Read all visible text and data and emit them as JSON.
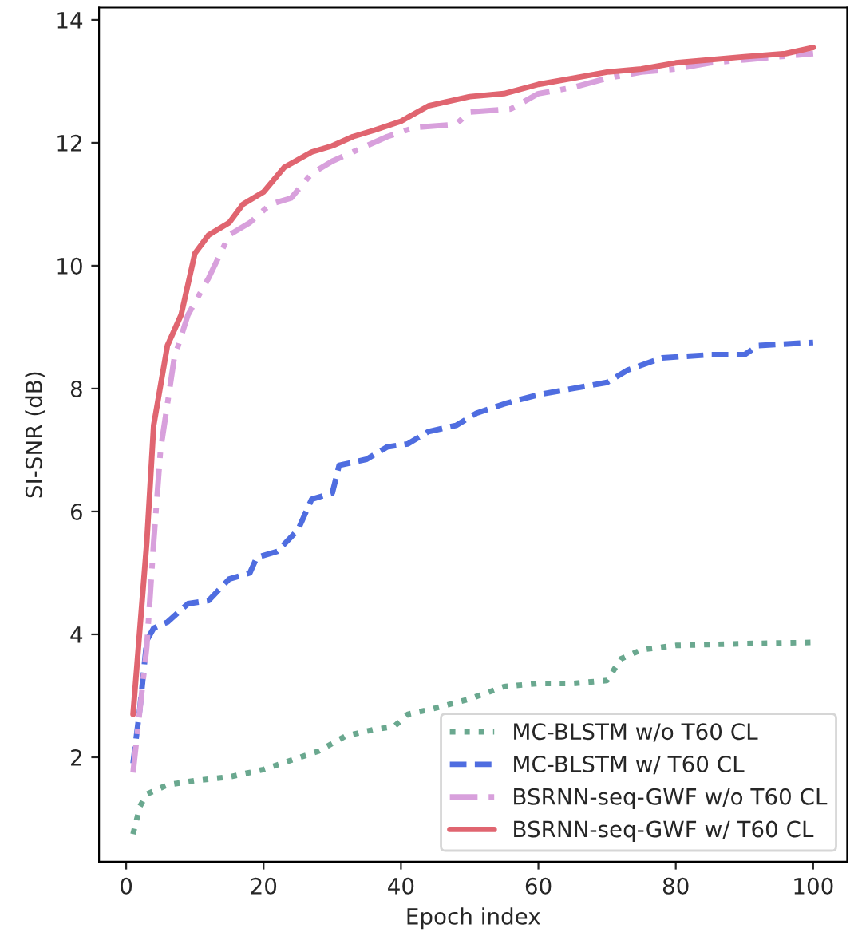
{
  "chart_data": {
    "type": "line",
    "xlabel": "Epoch index",
    "ylabel": "SI-SNR (dB)",
    "xlim": [
      -3.95,
      104.95
    ],
    "xticks": [
      0,
      20,
      40,
      60,
      80,
      100
    ],
    "ylim": [
      0.3,
      14.2
    ],
    "yticks": [
      2,
      4,
      6,
      8,
      10,
      12,
      14
    ],
    "grid": false,
    "legend": "bottom right",
    "marker": "none",
    "series": [
      {
        "name": "MC-BLSTM w/o T60 CL",
        "color": "#6aa88f",
        "line_style": "dotted",
        "x": [
          1,
          2,
          3,
          6,
          10,
          15,
          20,
          24,
          28,
          32,
          36,
          39,
          41,
          45,
          50,
          55,
          60,
          65,
          70,
          72,
          75,
          80,
          90,
          100
        ],
        "values": [
          0.75,
          1.2,
          1.4,
          1.55,
          1.62,
          1.68,
          1.8,
          1.95,
          2.1,
          2.35,
          2.45,
          2.5,
          2.7,
          2.8,
          2.95,
          3.15,
          3.2,
          3.2,
          3.25,
          3.6,
          3.75,
          3.82,
          3.85,
          3.87
        ]
      },
      {
        "name": "MC-BLSTM w/ T60 CL",
        "color": "#4f6de0",
        "line_style": "dashed",
        "x": [
          1,
          2,
          3,
          4,
          6,
          9,
          12,
          15,
          18,
          19,
          22,
          25,
          27,
          30,
          31,
          35,
          38,
          41,
          44,
          48,
          51,
          55,
          60,
          65,
          70,
          73,
          78,
          85,
          90,
          92,
          100
        ],
        "values": [
          1.9,
          2.8,
          3.9,
          4.1,
          4.2,
          4.5,
          4.55,
          4.9,
          5.0,
          5.25,
          5.35,
          5.7,
          6.2,
          6.3,
          6.75,
          6.85,
          7.05,
          7.1,
          7.3,
          7.4,
          7.6,
          7.75,
          7.9,
          8.0,
          8.1,
          8.3,
          8.5,
          8.55,
          8.55,
          8.7,
          8.75
        ]
      },
      {
        "name": "BSRNN-seq-GWF w/o T60 CL",
        "color": "#d8a0dc",
        "line_style": "dashdot",
        "x": [
          1,
          3,
          4,
          5,
          7,
          9,
          12,
          15,
          18,
          21,
          24,
          27,
          30,
          34,
          38,
          42,
          48,
          50,
          56,
          60,
          65,
          70,
          75,
          80,
          85,
          90,
          95,
          100
        ],
        "values": [
          1.75,
          3.8,
          5.5,
          7.0,
          8.5,
          9.2,
          9.8,
          10.5,
          10.7,
          11.0,
          11.1,
          11.5,
          11.7,
          11.9,
          12.1,
          12.25,
          12.3,
          12.5,
          12.55,
          12.8,
          12.9,
          13.05,
          13.15,
          13.2,
          13.3,
          13.35,
          13.4,
          13.45
        ]
      },
      {
        "name": "BSRNN-seq-GWF w/ T60 CL",
        "color": "#e06570",
        "line_style": "solid",
        "x": [
          1,
          3,
          4,
          6,
          8,
          10,
          12,
          15,
          17,
          20,
          23,
          27,
          30,
          33,
          36,
          40,
          44,
          50,
          55,
          60,
          65,
          70,
          75,
          80,
          90,
          96,
          100
        ],
        "values": [
          2.7,
          5.5,
          7.4,
          8.7,
          9.2,
          10.2,
          10.5,
          10.7,
          11.0,
          11.2,
          11.6,
          11.85,
          11.95,
          12.1,
          12.2,
          12.35,
          12.6,
          12.75,
          12.8,
          12.95,
          13.05,
          13.15,
          13.2,
          13.3,
          13.4,
          13.45,
          13.55
        ]
      }
    ]
  }
}
